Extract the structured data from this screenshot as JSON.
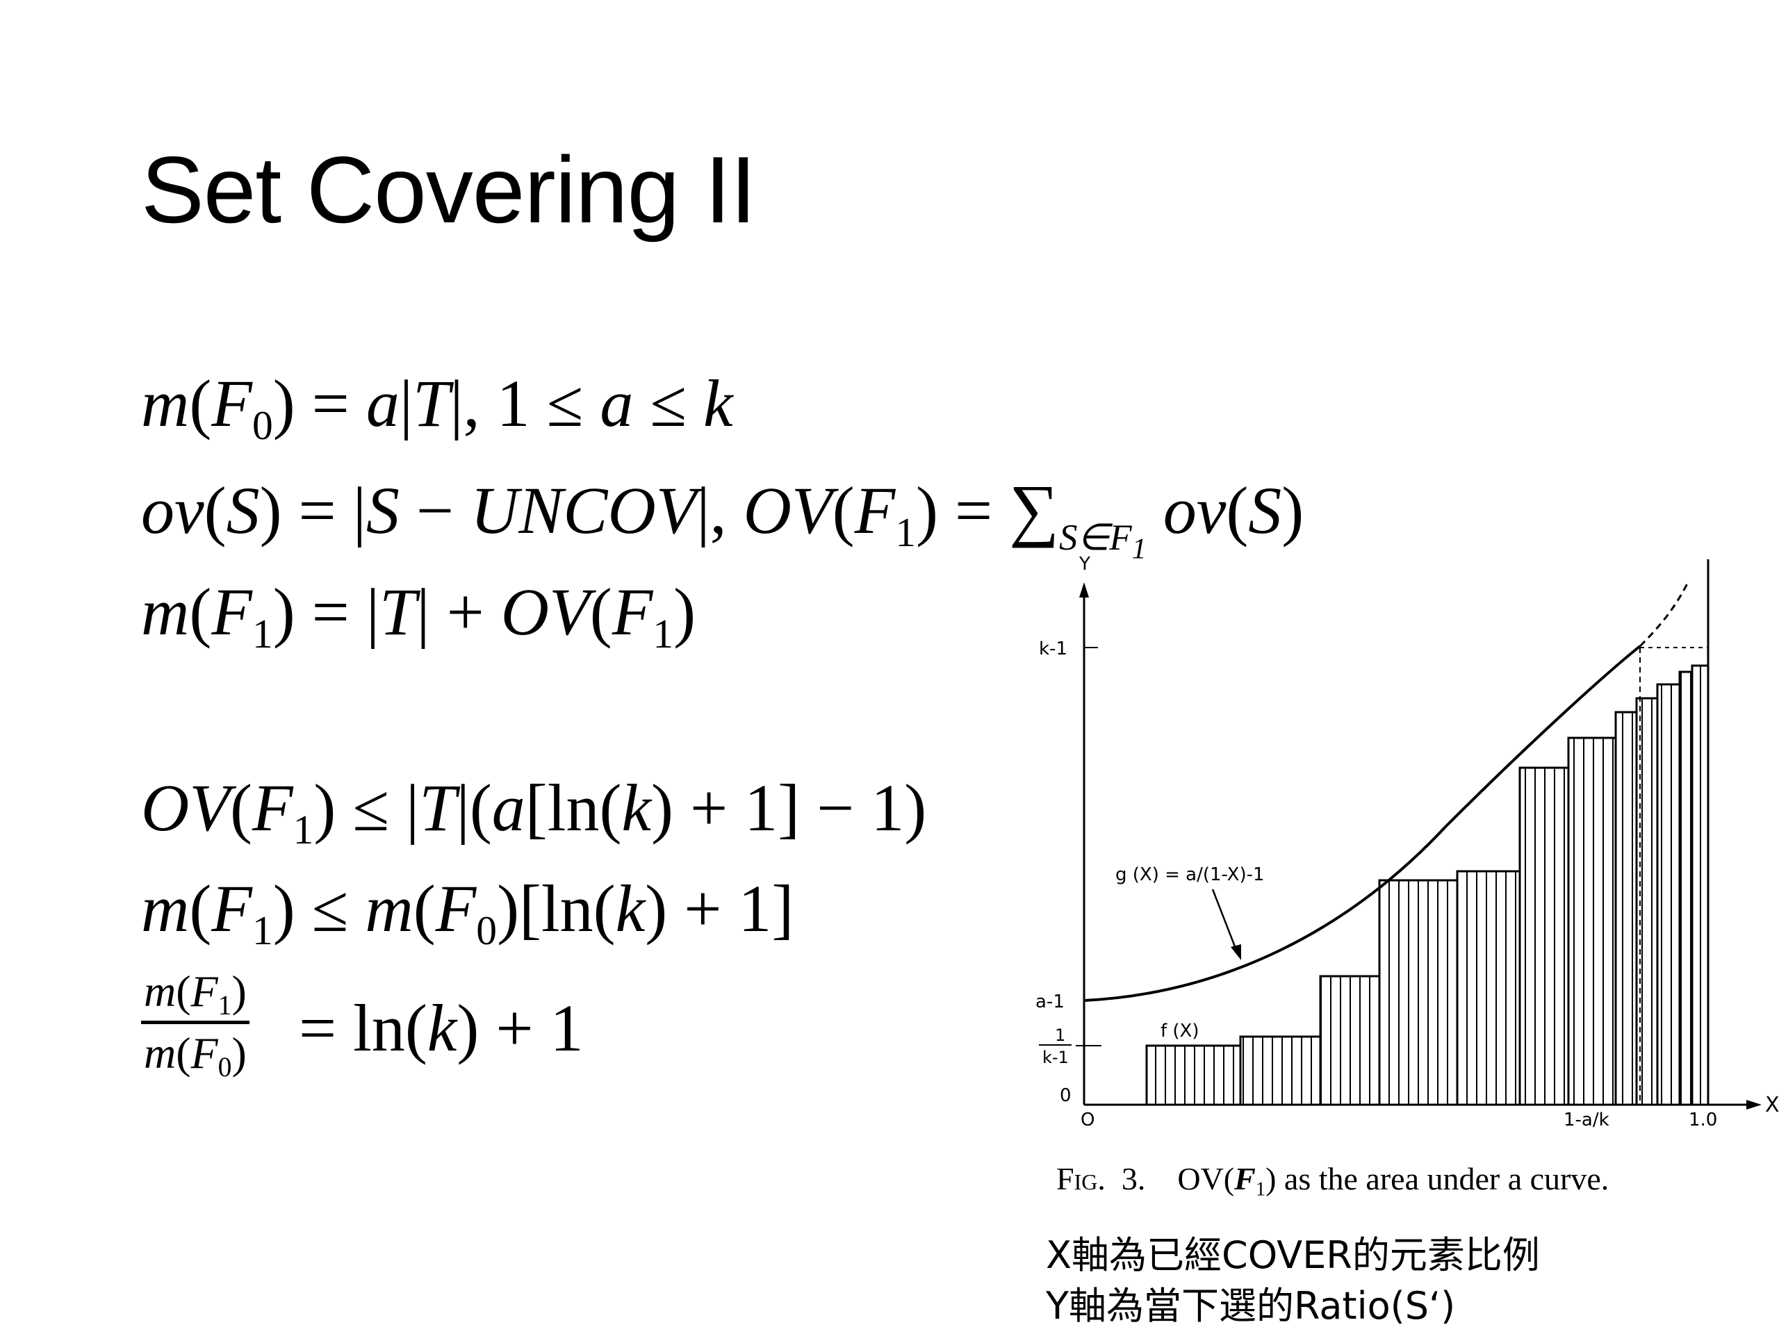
{
  "slide": {
    "title": "Set Covering II",
    "equations": {
      "line1": [
        "m",
        "(",
        "F",
        "0",
        ") = ",
        "a",
        "|",
        "T",
        "|, 1 ≤ ",
        "a",
        " ≤ ",
        "k"
      ],
      "line2": [
        "ov",
        "(",
        "S",
        ") = |",
        "S",
        " − ",
        "UNCOV",
        "|, ",
        "OV",
        "(",
        "F",
        "1",
        ") = ",
        "∑",
        "S∈F",
        "1",
        " ",
        "ov",
        "(",
        "S",
        ")"
      ],
      "line3": [
        "m",
        "(",
        "F",
        "1",
        ") = |",
        "T",
        "| + ",
        "OV",
        "(",
        "F",
        "1",
        ")"
      ],
      "line4": [
        "OV",
        "(",
        "F",
        "1",
        ") ≤ |",
        "T",
        "|(",
        "a",
        "[ln(",
        "k",
        ") + 1] − 1)"
      ],
      "line5": [
        "m",
        "(",
        "F",
        "1",
        ") ≤ ",
        "m",
        "(",
        "F",
        "0",
        ")[ln(",
        "k",
        ") + 1]"
      ],
      "line6_num": [
        "m",
        "(",
        "F",
        "1",
        ")"
      ],
      "line6_den": [
        "m",
        "(",
        "F",
        "0",
        ")"
      ],
      "line6_rhs": [
        "= ln(",
        "k",
        ") + 1"
      ]
    }
  },
  "figure": {
    "y_axis_label": "Y",
    "x_axis_label": "X",
    "y_ticks": {
      "k_minus_1": "k-1",
      "a_minus_1": "a-1",
      "one_over_k_minus_1_num": "1",
      "one_over_k_minus_1_den": "k-1",
      "zero": "0"
    },
    "x_ticks": {
      "origin": "O",
      "one_minus_a_over_k": "1-a/k",
      "one": "1.0"
    },
    "curve_label": "g (X) = a/(1-X)-1",
    "step_label": "f (X)",
    "caption_fig": "Fig.",
    "caption_num": "3.",
    "caption_ov": "OV(",
    "caption_F": "F",
    "caption_sub": "1",
    "caption_rest": ") as the area under a curve."
  },
  "notes": [
    "X軸為已經COVER的元素比例",
    "Y軸為當下選的Ratio(S‘)"
  ]
}
